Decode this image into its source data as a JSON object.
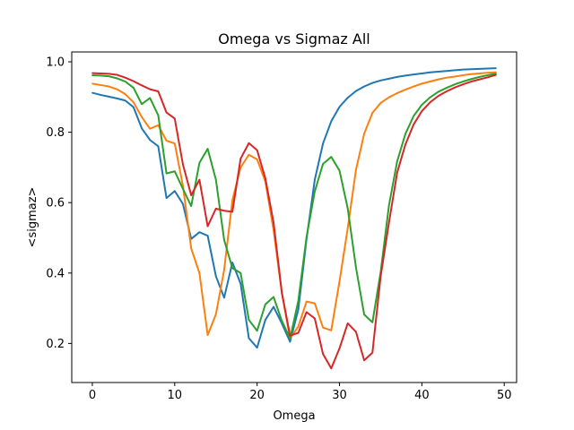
{
  "chart_data": {
    "type": "line",
    "title": "Omega vs Sigmaz All",
    "xlabel": "Omega",
    "ylabel": "<sigmaz>",
    "xlim": [
      -2.5,
      51.5
    ],
    "ylim": [
      0.089,
      1.028
    ],
    "xticks": [
      0,
      10,
      20,
      30,
      40,
      50
    ],
    "xtick_labels": [
      "0",
      "10",
      "20",
      "30",
      "40",
      "50"
    ],
    "yticks": [
      0.2,
      0.4,
      0.6,
      0.8,
      1.0
    ],
    "ytick_labels": [
      "0.2",
      "0.4",
      "0.6",
      "0.8",
      "1.0"
    ],
    "grid": false,
    "series": [
      {
        "color": "#1f77b4",
        "x": [
          0,
          1,
          2,
          3,
          4,
          5,
          6,
          7,
          8,
          9,
          10,
          11,
          12,
          13,
          14,
          15,
          16,
          17,
          18,
          19,
          20,
          21,
          22,
          23,
          24,
          25,
          26,
          27,
          28,
          29,
          30,
          31,
          32,
          33,
          34,
          35,
          36,
          37,
          38,
          39,
          40,
          41,
          42,
          43,
          44,
          45,
          46,
          47,
          48,
          49
        ],
        "y": [
          0.912,
          0.906,
          0.901,
          0.896,
          0.89,
          0.871,
          0.811,
          0.778,
          0.76,
          0.613,
          0.633,
          0.596,
          0.497,
          0.516,
          0.506,
          0.391,
          0.33,
          0.43,
          0.37,
          0.215,
          0.188,
          0.267,
          0.304,
          0.257,
          0.205,
          0.296,
          0.496,
          0.665,
          0.768,
          0.831,
          0.872,
          0.898,
          0.917,
          0.93,
          0.94,
          0.947,
          0.952,
          0.957,
          0.961,
          0.964,
          0.967,
          0.97,
          0.972,
          0.974,
          0.976,
          0.978,
          0.979,
          0.98,
          0.981,
          0.982
        ]
      },
      {
        "color": "#ff7f0e",
        "x": [
          0,
          1,
          2,
          3,
          4,
          5,
          6,
          7,
          8,
          9,
          10,
          11,
          12,
          13,
          14,
          15,
          16,
          17,
          18,
          19,
          20,
          21,
          22,
          23,
          24,
          25,
          26,
          27,
          28,
          29,
          30,
          31,
          32,
          33,
          34,
          35,
          36,
          37,
          38,
          39,
          40,
          41,
          42,
          43,
          44,
          45,
          46,
          47,
          48,
          49
        ],
        "y": [
          0.938,
          0.934,
          0.93,
          0.922,
          0.908,
          0.885,
          0.843,
          0.81,
          0.82,
          0.776,
          0.768,
          0.647,
          0.47,
          0.4,
          0.224,
          0.283,
          0.409,
          0.607,
          0.7,
          0.736,
          0.723,
          0.66,
          0.522,
          0.344,
          0.214,
          0.248,
          0.319,
          0.314,
          0.245,
          0.237,
          0.376,
          0.527,
          0.693,
          0.796,
          0.855,
          0.883,
          0.899,
          0.911,
          0.921,
          0.93,
          0.938,
          0.944,
          0.95,
          0.955,
          0.958,
          0.962,
          0.965,
          0.967,
          0.969,
          0.97
        ]
      },
      {
        "color": "#2ca02c",
        "x": [
          0,
          1,
          2,
          3,
          4,
          5,
          6,
          7,
          8,
          9,
          10,
          11,
          12,
          13,
          14,
          15,
          16,
          17,
          18,
          19,
          20,
          21,
          22,
          23,
          24,
          25,
          26,
          27,
          28,
          29,
          30,
          31,
          32,
          33,
          34,
          35,
          36,
          37,
          38,
          39,
          40,
          41,
          42,
          43,
          44,
          45,
          46,
          47,
          48,
          49
        ],
        "y": [
          0.962,
          0.961,
          0.959,
          0.953,
          0.944,
          0.926,
          0.88,
          0.897,
          0.848,
          0.683,
          0.689,
          0.639,
          0.59,
          0.713,
          0.753,
          0.665,
          0.494,
          0.414,
          0.4,
          0.267,
          0.236,
          0.311,
          0.332,
          0.264,
          0.214,
          0.321,
          0.502,
          0.632,
          0.71,
          0.73,
          0.691,
          0.584,
          0.416,
          0.282,
          0.26,
          0.403,
          0.591,
          0.717,
          0.795,
          0.846,
          0.878,
          0.899,
          0.915,
          0.926,
          0.936,
          0.944,
          0.951,
          0.957,
          0.962,
          0.966
        ]
      },
      {
        "color": "#d62728",
        "x": [
          0,
          1,
          2,
          3,
          4,
          5,
          6,
          7,
          8,
          9,
          10,
          11,
          12,
          13,
          14,
          15,
          16,
          17,
          18,
          19,
          20,
          21,
          22,
          23,
          24,
          25,
          26,
          27,
          28,
          29,
          30,
          31,
          32,
          33,
          34,
          35,
          36,
          37,
          38,
          39,
          40,
          41,
          42,
          43,
          44,
          45,
          46,
          47,
          48,
          49
        ],
        "y": [
          0.968,
          0.967,
          0.966,
          0.963,
          0.955,
          0.945,
          0.933,
          0.922,
          0.916,
          0.856,
          0.839,
          0.708,
          0.621,
          0.665,
          0.533,
          0.583,
          0.577,
          0.574,
          0.725,
          0.769,
          0.749,
          0.669,
          0.543,
          0.345,
          0.222,
          0.23,
          0.289,
          0.271,
          0.17,
          0.129,
          0.186,
          0.257,
          0.233,
          0.152,
          0.174,
          0.391,
          0.542,
          0.685,
          0.765,
          0.822,
          0.86,
          0.885,
          0.903,
          0.916,
          0.927,
          0.936,
          0.944,
          0.95,
          0.956,
          0.963
        ]
      }
    ]
  }
}
